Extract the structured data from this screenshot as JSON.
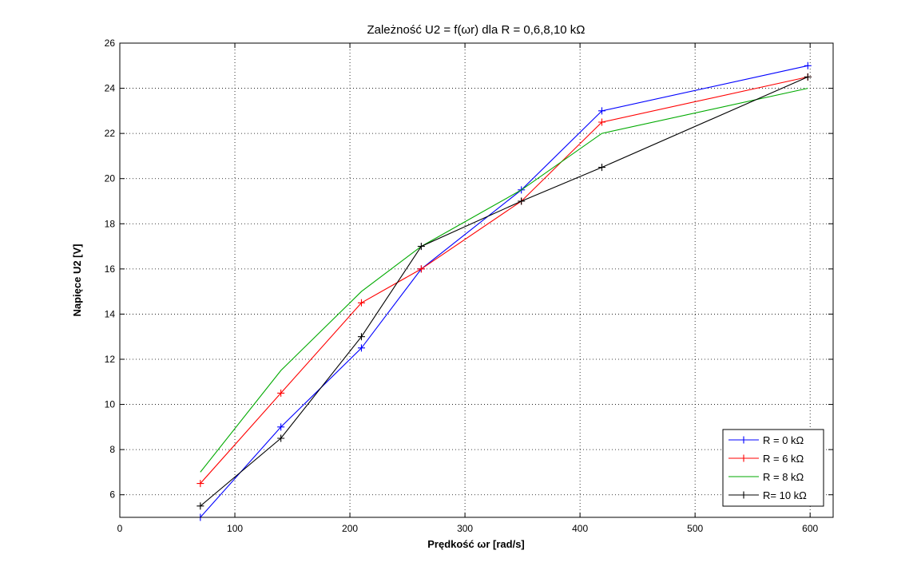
{
  "chart_data": {
    "type": "line",
    "title": "Zależność U2 = f(ωr) dla R = 0,6,8,10 kΩ",
    "xlabel": "Prędkość ωr [rad/s]",
    "ylabel": "Napięce U2 [V]",
    "xlim": [
      0,
      620
    ],
    "ylim": [
      5,
      26
    ],
    "xticks": [
      0,
      100,
      200,
      300,
      400,
      500,
      600
    ],
    "yticks": [
      6,
      8,
      10,
      12,
      14,
      16,
      18,
      20,
      22,
      24,
      26
    ],
    "grid": true,
    "legend_position": "bottom-right",
    "series": [
      {
        "name": "R = 0 kΩ",
        "color": "#0000ff",
        "marker": "+",
        "x": [
          70,
          140,
          210,
          262,
          349,
          419,
          598
        ],
        "y": [
          5.0,
          9.0,
          12.5,
          16.0,
          19.5,
          23.0,
          25.0
        ]
      },
      {
        "name": "R = 6 kΩ",
        "color": "#ff0000",
        "marker": "+",
        "x": [
          70,
          140,
          210,
          262,
          349,
          419,
          598
        ],
        "y": [
          6.5,
          10.5,
          14.5,
          16.0,
          19.0,
          22.5,
          24.5
        ]
      },
      {
        "name": "R = 8 kΩ",
        "color": "#00aa00",
        "marker": "none",
        "x": [
          70,
          140,
          210,
          262,
          349,
          419,
          598
        ],
        "y": [
          7.0,
          11.5,
          15.0,
          17.0,
          19.5,
          22.0,
          24.0
        ]
      },
      {
        "name": "R= 10 kΩ",
        "color": "#000000",
        "marker": "+",
        "x": [
          70,
          140,
          210,
          262,
          349,
          419,
          598
        ],
        "y": [
          5.5,
          8.5,
          13.0,
          17.0,
          19.0,
          20.5,
          24.5
        ]
      }
    ]
  }
}
